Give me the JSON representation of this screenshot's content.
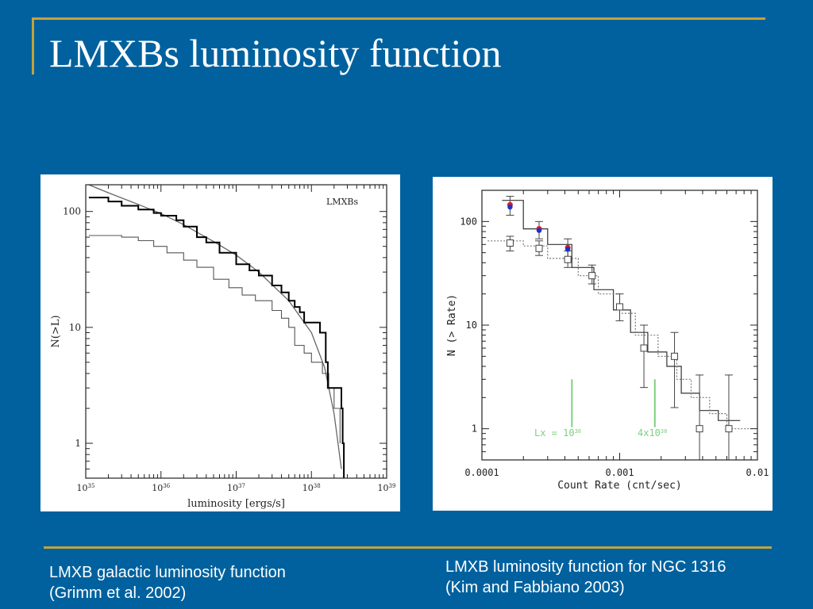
{
  "slide": {
    "title": "LMXBs luminosity function",
    "caption_left": [
      "LMXB galactic luminosity function",
      "(Grimm et al. 2002)"
    ],
    "caption_right": [
      "LMXB luminosity function for NGC 1316",
      "(Kim and Fabbiano 2003)"
    ],
    "colors": {
      "background": "#00619e",
      "accent_rule": "#c4a23c",
      "text": "#ffffff"
    }
  },
  "chart_data": [
    {
      "type": "line",
      "title": "LMXBs",
      "xlabel": "luminosity [ergs/s]",
      "ylabel": "N(>L)",
      "xscale": "log",
      "yscale": "log",
      "xlim": [
        1e+35,
        1e+39
      ],
      "ylim": [
        0.5,
        170
      ],
      "xticks": [
        {
          "value": 1e+35,
          "label": "10",
          "exp": "35"
        },
        {
          "value": 1e+36,
          "label": "10",
          "exp": "36"
        },
        {
          "value": 1e+37,
          "label": "10",
          "exp": "37"
        },
        {
          "value": 1e+38,
          "label": "10",
          "exp": "38"
        },
        {
          "value": 1e+39,
          "label": "10",
          "exp": "39"
        }
      ],
      "yticks": [
        {
          "value": 1,
          "label": "1"
        },
        {
          "value": 10,
          "label": "10"
        },
        {
          "value": 100,
          "label": "100"
        }
      ],
      "series": [
        {
          "style": "thick-step",
          "color": "#000000",
          "points": [
            [
              1.1e+35,
              132
            ],
            [
              2e+35,
              122
            ],
            [
              3e+35,
              112
            ],
            [
              5e+35,
              104
            ],
            [
              8e+35,
              97
            ],
            [
              1e+36,
              92
            ],
            [
              1.6e+36,
              84
            ],
            [
              2e+36,
              74
            ],
            [
              3e+36,
              60
            ],
            [
              4e+36,
              54
            ],
            [
              6e+36,
              44
            ],
            [
              1e+37,
              35
            ],
            [
              1.5e+37,
              31
            ],
            [
              2e+37,
              28
            ],
            [
              3e+37,
              23
            ],
            [
              4e+37,
              20
            ],
            [
              5e+37,
              17
            ],
            [
              6e+37,
              15
            ],
            [
              7e+37,
              13.5
            ],
            [
              8e+37,
              11
            ],
            [
              1.1e+38,
              11
            ],
            [
              1.3e+38,
              9
            ],
            [
              1.55e+38,
              5
            ],
            [
              1.65e+38,
              3
            ],
            [
              2.4e+38,
              3
            ],
            [
              2.5e+38,
              2
            ],
            [
              2.6e+38,
              1
            ],
            [
              2.7e+38,
              0.5
            ]
          ]
        },
        {
          "style": "thin-step",
          "color": "#555555",
          "points": [
            [
              1.1e+35,
              62
            ],
            [
              3e+35,
              60
            ],
            [
              5e+35,
              56
            ],
            [
              8e+35,
              50
            ],
            [
              1.2e+36,
              44
            ],
            [
              2e+36,
              38
            ],
            [
              3e+36,
              33
            ],
            [
              5e+36,
              26
            ],
            [
              8e+36,
              22
            ],
            [
              1.2e+37,
              19
            ],
            [
              1.8e+37,
              17
            ],
            [
              3e+37,
              14
            ],
            [
              4e+37,
              12
            ],
            [
              5e+37,
              10
            ],
            [
              6e+37,
              7
            ],
            [
              8e+37,
              6
            ],
            [
              1e+38,
              5
            ],
            [
              1.4e+38,
              4
            ],
            [
              1.7e+38,
              3
            ],
            [
              2e+38,
              2
            ],
            [
              2.4e+38,
              1
            ]
          ]
        },
        {
          "style": "model-curve",
          "color": "#666666",
          "points": [
            [
              1.1e+35,
              170
            ],
            [
              2e+35,
              145
            ],
            [
              5e+35,
              115
            ],
            [
              1e+36,
              96
            ],
            [
              2e+36,
              77
            ],
            [
              5e+36,
              55
            ],
            [
              1e+37,
              42
            ],
            [
              2e+37,
              30
            ],
            [
              5e+37,
              17
            ],
            [
              1e+38,
              9
            ],
            [
              1.5e+38,
              4.5
            ],
            [
              2e+38,
              1.8
            ],
            [
              2.5e+38,
              0.6
            ]
          ]
        }
      ]
    },
    {
      "type": "line",
      "xlabel": "Count Rate (cnt/sec)",
      "ylabel": "N (> Rate)",
      "xscale": "log",
      "yscale": "log",
      "xlim": [
        0.0001,
        0.01
      ],
      "ylim": [
        0.5,
        200
      ],
      "xticks": [
        {
          "value": 0.0001,
          "label": "0.0001"
        },
        {
          "value": 0.001,
          "label": "0.001"
        },
        {
          "value": 0.01,
          "label": "0.01"
        }
      ],
      "yticks": [
        {
          "value": 1,
          "label": "1"
        },
        {
          "value": 10,
          "label": "10"
        },
        {
          "value": 100,
          "label": "100"
        }
      ],
      "series": [
        {
          "style": "solid-step",
          "color": "#333333",
          "points": [
            [
              0.00014,
              160
            ],
            [
              0.0002,
              160
            ],
            [
              0.0002,
              85
            ],
            [
              0.0003,
              85
            ],
            [
              0.0003,
              60
            ],
            [
              0.00045,
              60
            ],
            [
              0.00045,
              36
            ],
            [
              0.00065,
              36
            ],
            [
              0.00065,
              22
            ],
            [
              0.0009,
              22
            ],
            [
              0.0009,
              14
            ],
            [
              0.0012,
              14
            ],
            [
              0.0012,
              8.5
            ],
            [
              0.0016,
              8.5
            ],
            [
              0.0016,
              5.5
            ],
            [
              0.0022,
              5.5
            ],
            [
              0.0022,
              4
            ],
            [
              0.0028,
              4
            ],
            [
              0.0028,
              2.2
            ],
            [
              0.0038,
              2.2
            ],
            [
              0.0038,
              1.5
            ],
            [
              0.0052,
              1.5
            ],
            [
              0.0052,
              1.2
            ],
            [
              0.0075,
              1.2
            ]
          ]
        },
        {
          "style": "dotted-step",
          "color": "#777777",
          "points": [
            [
              0.00011,
              65
            ],
            [
              0.0002,
              65
            ],
            [
              0.0002,
              58
            ],
            [
              0.0003,
              58
            ],
            [
              0.0003,
              44
            ],
            [
              0.0005,
              44
            ],
            [
              0.0005,
              30
            ],
            [
              0.0007,
              30
            ],
            [
              0.0007,
              20
            ],
            [
              0.001,
              20
            ],
            [
              0.001,
              13
            ],
            [
              0.0013,
              13
            ],
            [
              0.0013,
              8
            ],
            [
              0.0019,
              8
            ],
            [
              0.0019,
              5
            ],
            [
              0.0026,
              5
            ],
            [
              0.0026,
              3
            ],
            [
              0.0033,
              3
            ],
            [
              0.0033,
              2
            ],
            [
              0.0045,
              2
            ],
            [
              0.0045,
              1.4
            ],
            [
              0.006,
              1.4
            ],
            [
              0.006,
              1
            ],
            [
              0.009,
              1
            ]
          ]
        },
        {
          "style": "open-squares",
          "color": "#444444",
          "points": [
            [
              0.00016,
              62
            ],
            [
              0.00026,
              55
            ],
            [
              0.00042,
              43
            ],
            [
              0.00063,
              30
            ],
            [
              0.001,
              15
            ],
            [
              0.0015,
              6
            ],
            [
              0.0025,
              5
            ],
            [
              0.0038,
              1
            ],
            [
              0.0062,
              1
            ]
          ]
        },
        {
          "style": "filled-points",
          "color": "#d6202a",
          "points": [
            [
              0.00016,
              145
            ],
            [
              0.00026,
              85
            ],
            [
              0.00042,
              56
            ]
          ]
        },
        {
          "style": "filled-points",
          "color": "#2231c4",
          "points": [
            [
              0.00016,
              138
            ],
            [
              0.00026,
              82
            ],
            [
              0.00042,
              54
            ]
          ]
        }
      ],
      "errorbars": [
        {
          "x": 0.00016,
          "lo": 52,
          "hi": 72
        },
        {
          "x": 0.00026,
          "lo": 47,
          "hi": 65
        },
        {
          "x": 0.00042,
          "lo": 36,
          "hi": 52
        },
        {
          "x": 0.00063,
          "lo": 25,
          "hi": 38
        },
        {
          "x": 0.001,
          "lo": 11,
          "hi": 20
        },
        {
          "x": 0.0015,
          "lo": 2.5,
          "hi": 10
        },
        {
          "x": 0.0025,
          "lo": 1.6,
          "hi": 8.5
        },
        {
          "x": 0.0038,
          "lo": 0.5,
          "hi": 3.3
        },
        {
          "x": 0.0062,
          "lo": 0.5,
          "hi": 3.3
        },
        {
          "x": 0.00016,
          "lo": 115,
          "hi": 175
        },
        {
          "x": 0.00026,
          "lo": 68,
          "hi": 100
        },
        {
          "x": 0.00042,
          "lo": 44,
          "hi": 68
        }
      ],
      "annotations": {
        "color": "#7fd07f",
        "markers": [
          {
            "x": 0.00045,
            "lo": 1,
            "hi": 3
          },
          {
            "x": 0.0018,
            "lo": 1,
            "hi": 3
          }
        ],
        "label1": {
          "text": "Lx = 10",
          "exp": "38"
        },
        "label2": {
          "text": "4x10",
          "exp": "38"
        }
      }
    }
  ]
}
